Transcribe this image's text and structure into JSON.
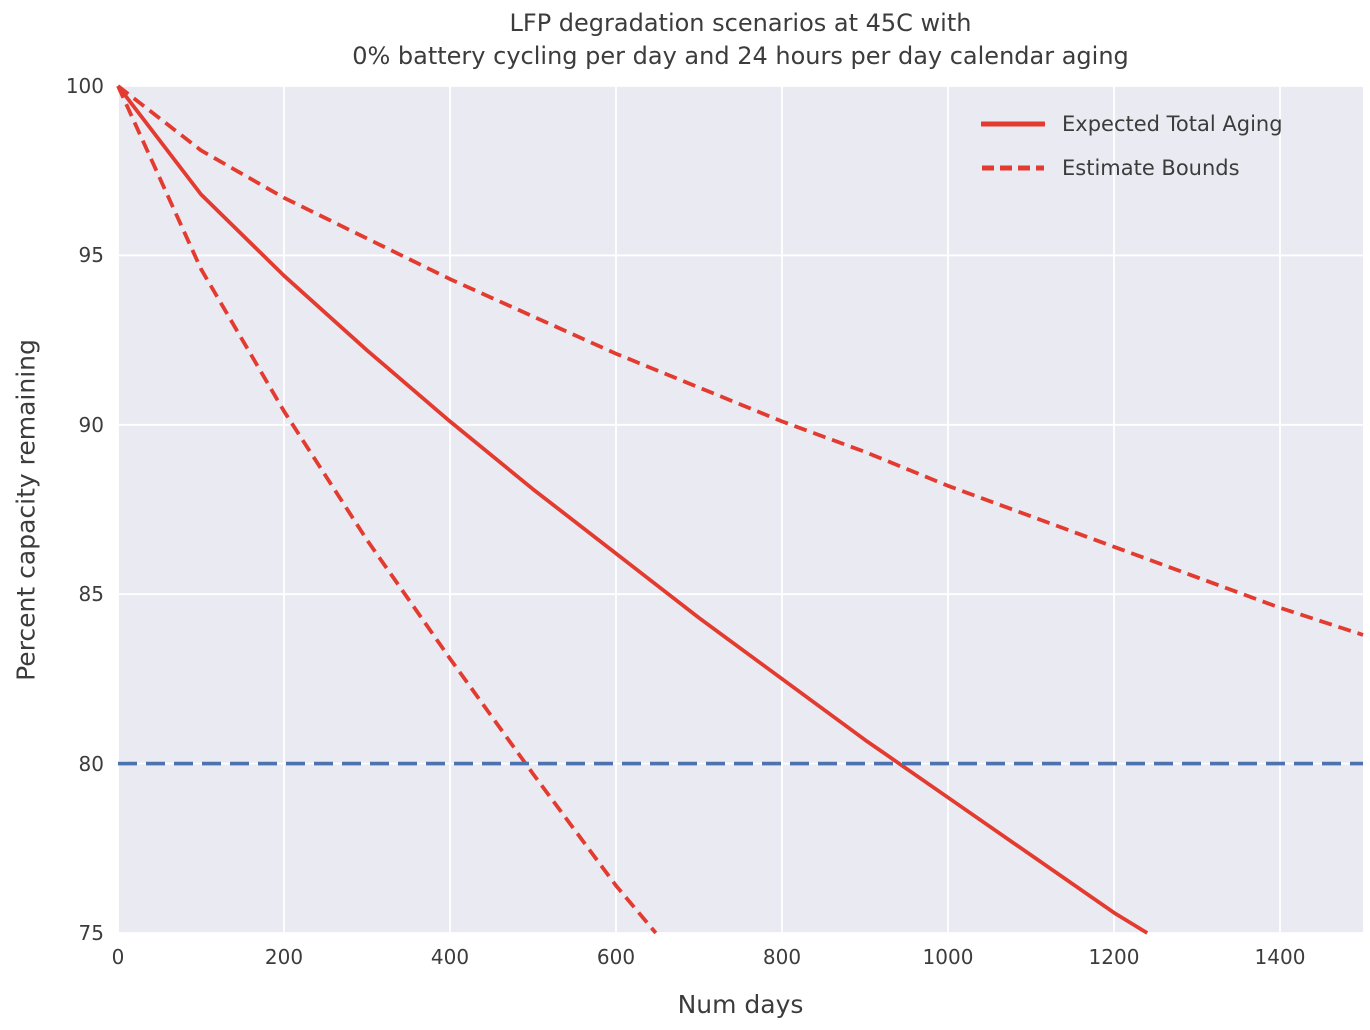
{
  "figure": {
    "title_line1": "LFP degradation scenarios at 45C with",
    "title_line2": "0% battery cycling per day and 24 hours per day calendar aging",
    "xlabel": "Num days",
    "ylabel": "Percent capacity remaining",
    "legend": [
      "Expected Total Aging",
      "Estimate Bounds"
    ]
  },
  "colors": {
    "series_red": "#e33b2f",
    "threshold_blue": "#4c72b0",
    "plot_background": "#eaeaf2",
    "gridline": "#ffffff",
    "text": "#3c3c3c"
  },
  "chart_data": {
    "type": "line",
    "title": "LFP degradation scenarios at 45C with\n0% battery cycling per day and 24 hours per day calendar aging",
    "xlabel": "Num days",
    "ylabel": "Percent capacity remaining",
    "xlim": [
      0,
      1500
    ],
    "ylim": [
      75,
      100
    ],
    "x_ticks": [
      0,
      200,
      400,
      600,
      800,
      1000,
      1200,
      1400
    ],
    "y_ticks": [
      75,
      80,
      85,
      90,
      95,
      100
    ],
    "grid": true,
    "legend_position": "upper right",
    "legend_entries": [
      "Expected Total Aging",
      "Estimate Bounds"
    ],
    "series": [
      {
        "name": "Expected Total Aging",
        "style": "solid",
        "color": "#e33b2f",
        "dash": "",
        "width": 3.8,
        "x": [
          0,
          100,
          200,
          300,
          400,
          500,
          600,
          700,
          800,
          900,
          1000,
          1100,
          1200,
          1240
        ],
        "y": [
          100,
          96.8,
          94.4,
          92.2,
          90.1,
          88.1,
          86.2,
          84.3,
          82.5,
          80.7,
          79.0,
          77.3,
          75.6,
          75.0
        ]
      },
      {
        "name": "Estimate Bounds (upper)",
        "style": "dashed",
        "color": "#e33b2f",
        "dash": "13 7",
        "width": 3.8,
        "x": [
          0,
          100,
          200,
          300,
          400,
          500,
          600,
          700,
          800,
          900,
          1000,
          1100,
          1200,
          1300,
          1400,
          1500
        ],
        "y": [
          100,
          98.1,
          96.7,
          95.5,
          94.3,
          93.2,
          92.1,
          91.1,
          90.1,
          89.2,
          88.2,
          87.3,
          86.4,
          85.5,
          84.6,
          83.8
        ]
      },
      {
        "name": "Estimate Bounds (lower)",
        "style": "dashed",
        "color": "#e33b2f",
        "dash": "13 7",
        "width": 3.8,
        "x": [
          0,
          100,
          200,
          300,
          400,
          500,
          600,
          648
        ],
        "y": [
          100,
          94.6,
          90.4,
          86.6,
          83.1,
          79.7,
          76.4,
          75.0
        ]
      },
      {
        "name": "80% capacity threshold",
        "style": "dashed",
        "color": "#4c72b0",
        "dash": "19 9",
        "width": 3.6,
        "x": [
          0,
          1500
        ],
        "y": [
          80,
          80
        ]
      }
    ]
  }
}
